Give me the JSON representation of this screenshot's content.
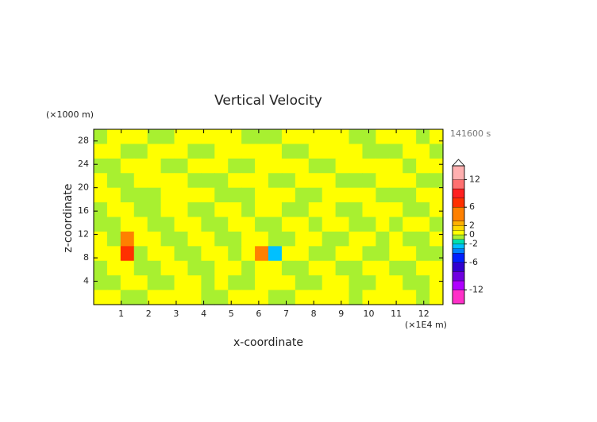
{
  "chart_data": {
    "type": "contour",
    "title": "Vertical Velocity",
    "xlabel": "x-coordinate",
    "ylabel": "z-coordinate",
    "xunit": "(×1E4 m)",
    "yunit": "(×1000 m)",
    "time_label": "141600 s",
    "xlim": [
      0,
      12.7
    ],
    "ylim": [
      0,
      30
    ],
    "xticks": [
      1,
      2,
      3,
      4,
      5,
      6,
      7,
      8,
      9,
      10,
      11,
      12
    ],
    "yticks": [
      4,
      8,
      12,
      16,
      20,
      24,
      28
    ],
    "field": {
      "values": [
        [
          -0.5,
          0.5,
          0.5,
          0.5,
          -0.5,
          -0.5,
          0.5,
          0.5,
          0.5,
          0.5,
          0.5,
          -0.5,
          -0.5,
          -0.5,
          0.5,
          0.5,
          0.5,
          0.5,
          0.5,
          -0.5,
          -0.5,
          0.5,
          0.5,
          0.5,
          -0.5,
          0.5
        ],
        [
          0.5,
          0.5,
          -0.5,
          -0.5,
          0.5,
          0.5,
          0.5,
          -0.5,
          -0.5,
          0.5,
          0.5,
          0.5,
          0.5,
          0.5,
          -0.5,
          -0.5,
          0.5,
          0.5,
          0.5,
          0.5,
          -0.5,
          -0.5,
          -0.5,
          0.5,
          0.5,
          -0.5
        ],
        [
          -0.5,
          -0.5,
          0.5,
          0.5,
          0.5,
          -0.5,
          -0.5,
          0.5,
          0.5,
          0.5,
          -0.5,
          -0.5,
          0.5,
          0.5,
          0.5,
          0.5,
          -0.5,
          -0.5,
          0.5,
          0.5,
          0.5,
          0.5,
          0.5,
          -0.5,
          0.5,
          0.5
        ],
        [
          0.5,
          -0.5,
          -0.5,
          0.5,
          0.5,
          0.5,
          0.5,
          -0.5,
          -0.5,
          -0.5,
          0.5,
          0.5,
          0.5,
          -0.5,
          -0.5,
          0.5,
          0.5,
          0.5,
          -0.5,
          -0.5,
          -0.5,
          0.5,
          0.5,
          0.5,
          -0.5,
          -0.5
        ],
        [
          0.5,
          0.5,
          -0.5,
          -0.5,
          -0.5,
          0.5,
          0.5,
          0.5,
          0.5,
          -0.5,
          -0.5,
          -0.5,
          0.5,
          0.5,
          0.5,
          -0.5,
          -0.5,
          0.5,
          0.5,
          0.5,
          0.5,
          -0.5,
          -0.5,
          -0.5,
          0.5,
          0.5
        ],
        [
          -0.5,
          0.5,
          0.5,
          -0.5,
          -0.5,
          0.5,
          0.5,
          -0.5,
          -0.5,
          0.5,
          0.5,
          -0.5,
          0.5,
          0.5,
          -0.5,
          -0.5,
          0.5,
          0.5,
          -0.5,
          -0.5,
          0.5,
          0.5,
          0.5,
          -0.5,
          -0.5,
          0.5
        ],
        [
          -0.5,
          -0.5,
          0.5,
          0.5,
          -0.5,
          -0.5,
          0.5,
          0.5,
          -0.5,
          -0.5,
          0.5,
          0.5,
          -0.5,
          -0.5,
          0.5,
          0.5,
          -0.5,
          0.5,
          0.5,
          -0.5,
          -0.5,
          0.5,
          -0.5,
          0.5,
          0.5,
          -0.5
        ],
        [
          0.5,
          -0.5,
          4,
          0.5,
          0.5,
          -0.5,
          -0.5,
          0.5,
          0.5,
          -0.5,
          -0.5,
          0.5,
          0.5,
          -0.5,
          -0.5,
          0.5,
          0.5,
          -0.5,
          -0.5,
          0.5,
          0.5,
          -0.5,
          0.5,
          -0.5,
          -0.5,
          0.5
        ],
        [
          0.5,
          0.5,
          7,
          -0.5,
          0.5,
          0.5,
          -0.5,
          -0.5,
          0.5,
          0.5,
          -0.5,
          0.5,
          3,
          -3,
          0.5,
          0.5,
          -0.5,
          -0.5,
          0.5,
          0.5,
          -0.5,
          -0.5,
          0.5,
          0.5,
          -0.5,
          -0.5
        ],
        [
          -0.5,
          0.5,
          0.5,
          -0.5,
          -0.5,
          0.5,
          0.5,
          -0.5,
          -0.5,
          0.5,
          0.5,
          -0.5,
          0.5,
          0.5,
          -0.5,
          -0.5,
          0.5,
          0.5,
          -0.5,
          -0.5,
          0.5,
          0.5,
          -0.5,
          -0.5,
          0.5,
          0.5
        ],
        [
          -0.5,
          -0.5,
          0.5,
          0.5,
          -0.5,
          -0.5,
          0.5,
          0.5,
          -0.5,
          0.5,
          -0.5,
          -0.5,
          0.5,
          0.5,
          0.5,
          -0.5,
          -0.5,
          0.5,
          0.5,
          -0.5,
          -0.5,
          0.5,
          0.5,
          -0.5,
          -0.5,
          0.5
        ],
        [
          0.5,
          0.5,
          -0.5,
          -0.5,
          0.5,
          0.5,
          0.5,
          0.5,
          -0.5,
          -0.5,
          0.5,
          0.5,
          0.5,
          -0.5,
          -0.5,
          0.5,
          0.5,
          0.5,
          0.5,
          -0.5,
          0.5,
          0.5,
          0.5,
          0.5,
          -0.5,
          0.5
        ]
      ]
    },
    "colorbar": {
      "range": [
        -15,
        15
      ],
      "bounds": [
        -15,
        -12,
        -10,
        -8,
        -6,
        -4,
        -3,
        -2,
        -1,
        0,
        1,
        2,
        3,
        6,
        8,
        10,
        12,
        15
      ],
      "colors": [
        "#ff30c8",
        "#b000ff",
        "#7000e0",
        "#3000d0",
        "#0020ff",
        "#0080ff",
        "#00c0ff",
        "#00e0b0",
        "#a8f030",
        "#ffff00",
        "#ffd800",
        "#ffb000",
        "#ff8000",
        "#ff3000",
        "#ff2020",
        "#ff7070",
        "#ffb0b0"
      ],
      "ticks": [
        12,
        6,
        2,
        0,
        -2,
        -6,
        -12
      ]
    }
  }
}
